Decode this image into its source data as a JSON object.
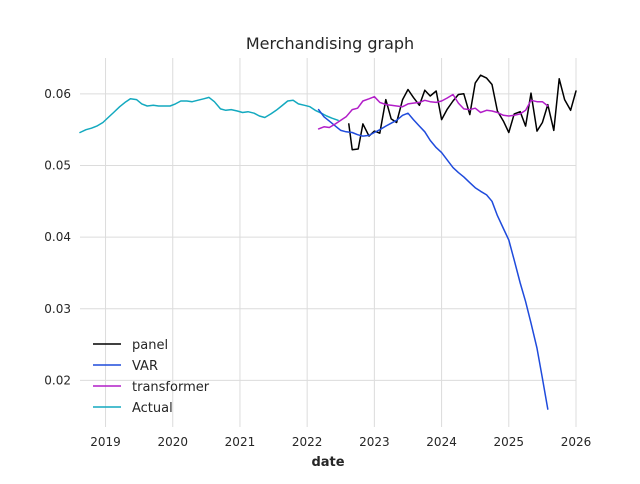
{
  "chart_data": {
    "type": "line",
    "title": "Merchandising graph",
    "xlabel": "date",
    "ylabel": "",
    "xlim": [
      2018.62,
      2026.0
    ],
    "ylim": [
      0.0135,
      0.065
    ],
    "xticks": [
      2019,
      2020,
      2021,
      2022,
      2023,
      2024,
      2025,
      2026
    ],
    "xtick_labels": [
      "2019",
      "2020",
      "2021",
      "2022",
      "2023",
      "2024",
      "2025",
      "2026"
    ],
    "yticks": [
      0.02,
      0.03,
      0.04,
      0.05,
      0.06
    ],
    "ytick_labels": [
      "0.02",
      "0.03",
      "0.04",
      "0.05",
      "0.06"
    ],
    "grid": true,
    "legend_position": "lower-left",
    "series": [
      {
        "name": "panel",
        "color": "#000000",
        "x": [
          2022.62,
          2022.67,
          2022.76,
          2022.83,
          2022.92,
          2023.0,
          2023.08,
          2023.17,
          2023.25,
          2023.33,
          2023.42,
          2023.5,
          2023.58,
          2023.67,
          2023.75,
          2023.83,
          2023.92,
          2024.0,
          2024.08,
          2024.17,
          2024.25,
          2024.33,
          2024.42,
          2024.5,
          2024.58,
          2024.67,
          2024.75,
          2024.83,
          2024.92,
          2025.0,
          2025.08,
          2025.17,
          2025.25,
          2025.33,
          2025.42,
          2025.5,
          2025.58,
          2025.67,
          2025.75,
          2025.83,
          2025.92,
          2026.0
        ],
        "y": [
          0.0558,
          0.0522,
          0.0523,
          0.0558,
          0.0541,
          0.0548,
          0.0545,
          0.0592,
          0.0565,
          0.056,
          0.0592,
          0.0606,
          0.0595,
          0.0584,
          0.0605,
          0.0597,
          0.0604,
          0.0564,
          0.0578,
          0.059,
          0.0599,
          0.06,
          0.0571,
          0.0615,
          0.0626,
          0.0622,
          0.0613,
          0.0576,
          0.0562,
          0.0546,
          0.0572,
          0.0575,
          0.0555,
          0.0601,
          0.0548,
          0.056,
          0.0585,
          0.0549,
          0.0621,
          0.0592,
          0.0577,
          0.0604
        ]
      },
      {
        "name": "VAR",
        "color": "#1f4bdc",
        "x": [
          2022.17,
          2022.25,
          2022.33,
          2022.42,
          2022.5,
          2022.58,
          2022.67,
          2022.75,
          2022.83,
          2022.92,
          2023.0,
          2023.08,
          2023.17,
          2023.25,
          2023.33,
          2023.42,
          2023.5,
          2023.58,
          2023.67,
          2023.75,
          2023.83,
          2023.92,
          2024.0,
          2024.08,
          2024.17,
          2024.25,
          2024.33,
          2024.42,
          2024.5,
          2024.58,
          2024.67,
          2024.75,
          2024.83,
          2024.92,
          2025.0,
          2025.08,
          2025.17,
          2025.25,
          2025.33,
          2025.42,
          2025.5,
          2025.58
        ],
        "y": [
          0.0578,
          0.0568,
          0.0562,
          0.0555,
          0.0549,
          0.0547,
          0.0546,
          0.0543,
          0.0541,
          0.0542,
          0.0546,
          0.055,
          0.0555,
          0.0559,
          0.0563,
          0.057,
          0.0573,
          0.0564,
          0.0555,
          0.0547,
          0.0535,
          0.0525,
          0.0518,
          0.0508,
          0.0497,
          0.049,
          0.0484,
          0.0476,
          0.0469,
          0.0464,
          0.0459,
          0.045,
          0.043,
          0.0412,
          0.0396,
          0.0368,
          0.0336,
          0.031,
          0.028,
          0.0245,
          0.0203,
          0.016
        ]
      },
      {
        "name": "transformer",
        "color": "#b21ec8",
        "x": [
          2022.17,
          2022.25,
          2022.33,
          2022.42,
          2022.5,
          2022.58,
          2022.67,
          2022.75,
          2022.83,
          2022.92,
          2023.0,
          2023.08,
          2023.17,
          2023.25,
          2023.33,
          2023.42,
          2023.5,
          2023.58,
          2023.67,
          2023.75,
          2023.83,
          2023.92,
          2024.0,
          2024.08,
          2024.17,
          2024.25,
          2024.33,
          2024.42,
          2024.5,
          2024.58,
          2024.67,
          2024.75,
          2024.83,
          2024.92,
          2025.0,
          2025.08,
          2025.17,
          2025.25,
          2025.33,
          2025.42,
          2025.5,
          2025.58
        ],
        "y": [
          0.0551,
          0.0554,
          0.0553,
          0.0558,
          0.0563,
          0.0568,
          0.0578,
          0.058,
          0.059,
          0.0593,
          0.0596,
          0.0588,
          0.0585,
          0.0584,
          0.0583,
          0.0582,
          0.0586,
          0.0587,
          0.0588,
          0.0591,
          0.0589,
          0.0588,
          0.059,
          0.0594,
          0.0599,
          0.0587,
          0.0579,
          0.0578,
          0.058,
          0.0574,
          0.0577,
          0.0576,
          0.0574,
          0.057,
          0.0569,
          0.057,
          0.0572,
          0.0577,
          0.0591,
          0.0589,
          0.0589,
          0.0583
        ]
      },
      {
        "name": "Actual",
        "color": "#13a9bf",
        "x": [
          2018.62,
          2018.71,
          2018.79,
          2018.87,
          2018.96,
          2019.04,
          2019.12,
          2019.21,
          2019.29,
          2019.37,
          2019.46,
          2019.54,
          2019.62,
          2019.71,
          2019.79,
          2019.87,
          2019.96,
          2020.04,
          2020.12,
          2020.21,
          2020.29,
          2020.37,
          2020.46,
          2020.54,
          2020.62,
          2020.71,
          2020.79,
          2020.87,
          2020.96,
          2021.04,
          2021.12,
          2021.21,
          2021.29,
          2021.37,
          2021.46,
          2021.54,
          2021.62,
          2021.71,
          2021.79,
          2021.87,
          2021.96,
          2022.04,
          2022.12,
          2022.21,
          2022.29,
          2022.37,
          2022.46
        ],
        "y": [
          0.0546,
          0.055,
          0.0552,
          0.0555,
          0.056,
          0.0567,
          0.0574,
          0.0582,
          0.0588,
          0.0593,
          0.0592,
          0.0586,
          0.0583,
          0.0584,
          0.0583,
          0.0583,
          0.0583,
          0.0586,
          0.059,
          0.059,
          0.0589,
          0.0591,
          0.0593,
          0.0595,
          0.0589,
          0.0579,
          0.0577,
          0.0578,
          0.0576,
          0.0574,
          0.0575,
          0.0573,
          0.0569,
          0.0567,
          0.0572,
          0.0577,
          0.0583,
          0.059,
          0.0591,
          0.0586,
          0.0584,
          0.0582,
          0.0577,
          0.0573,
          0.0569,
          0.0566,
          0.0563
        ]
      }
    ]
  }
}
